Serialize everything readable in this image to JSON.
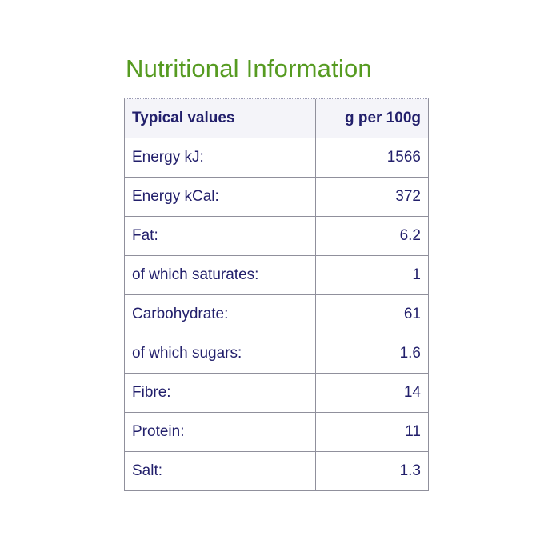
{
  "page": {
    "title": "Nutritional Information"
  },
  "colors": {
    "title_green": "#569b21",
    "text_navy": "#221f6b",
    "border_gray": "#90909c",
    "header_background": "#f4f4f9"
  },
  "table": {
    "headers": {
      "label": "Typical values",
      "value": "g per 100g"
    },
    "rows": [
      {
        "label": "Energy kJ:",
        "value": "1566"
      },
      {
        "label": "Energy kCal:",
        "value": "372"
      },
      {
        "label": "Fat:",
        "value": "6.2"
      },
      {
        "label": "of which saturates:",
        "value": "1"
      },
      {
        "label": "Carbohydrate:",
        "value": "61"
      },
      {
        "label": "of which sugars:",
        "value": "1.6"
      },
      {
        "label": "Fibre:",
        "value": "14"
      },
      {
        "label": "Protein:",
        "value": "11"
      },
      {
        "label": "Salt:",
        "value": "1.3"
      }
    ]
  }
}
